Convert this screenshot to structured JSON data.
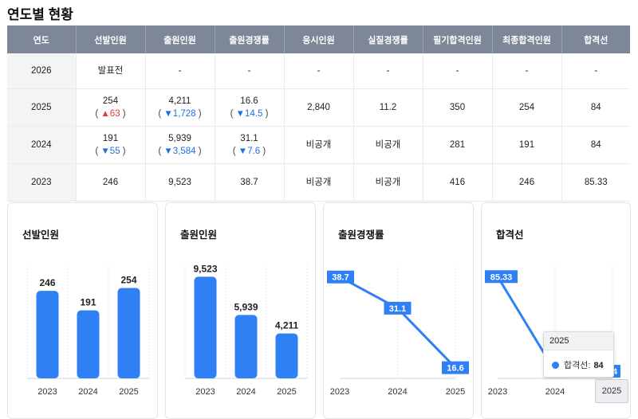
{
  "page_title": "연도별 현황",
  "table": {
    "headers": [
      "연도",
      "선발인원",
      "출원인원",
      "출원경쟁률",
      "응시인원",
      "실질경쟁률",
      "필기합격인원",
      "최종합격인원",
      "합격선"
    ],
    "rows": [
      {
        "year": "2026",
        "selected": "발표전",
        "selected_chg": null,
        "applicants": "-",
        "applicants_chg": null,
        "comp": "-",
        "comp_chg": null,
        "exam_takers": "-",
        "real_comp": "-",
        "written_pass": "-",
        "final_pass": "-",
        "cutoff": "-"
      },
      {
        "year": "2025",
        "selected": "254",
        "selected_chg": {
          "dir": "up",
          "symbol": "▲",
          "value": "63"
        },
        "applicants": "4,211",
        "applicants_chg": {
          "dir": "down",
          "symbol": "▼",
          "value": "1,728"
        },
        "comp": "16.6",
        "comp_chg": {
          "dir": "down",
          "symbol": "▼",
          "value": "14.5"
        },
        "exam_takers": "2,840",
        "real_comp": "11.2",
        "written_pass": "350",
        "final_pass": "254",
        "cutoff": "84"
      },
      {
        "year": "2024",
        "selected": "191",
        "selected_chg": {
          "dir": "down",
          "symbol": "▼",
          "value": "55"
        },
        "applicants": "5,939",
        "applicants_chg": {
          "dir": "down",
          "symbol": "▼",
          "value": "3,584"
        },
        "comp": "31.1",
        "comp_chg": {
          "dir": "down",
          "symbol": "▼",
          "value": "7.6"
        },
        "exam_takers": "비공개",
        "real_comp": "비공개",
        "written_pass": "281",
        "final_pass": "191",
        "cutoff": "84"
      },
      {
        "year": "2023",
        "selected": "246",
        "selected_chg": null,
        "applicants": "9,523",
        "applicants_chg": null,
        "comp": "38.7",
        "comp_chg": null,
        "exam_takers": "비공개",
        "real_comp": "비공개",
        "written_pass": "416",
        "final_pass": "246",
        "cutoff": "85.33"
      }
    ]
  },
  "colors": {
    "accent": "#2f80f5",
    "header_bg": "#7d8797",
    "up": "#e53935",
    "down": "#1e6fe0"
  },
  "chart_data": [
    {
      "type": "bar",
      "title": "선발인원",
      "categories": [
        "2023",
        "2024",
        "2025"
      ],
      "values": [
        246,
        191,
        254
      ],
      "value_labels": [
        "246",
        "191",
        "254"
      ],
      "ylim": [
        0,
        300
      ]
    },
    {
      "type": "bar",
      "title": "출원인원",
      "categories": [
        "2023",
        "2024",
        "2025"
      ],
      "values": [
        9523,
        5939,
        4211
      ],
      "value_labels": [
        "9,523",
        "5,939",
        "4,211"
      ],
      "ylim": [
        0,
        10000
      ]
    },
    {
      "type": "line",
      "title": "출원경쟁률",
      "categories": [
        "2023",
        "2024",
        "2025"
      ],
      "values": [
        38.7,
        31.1,
        16.6
      ],
      "value_labels": [
        "38.7",
        "31.1",
        "16.6"
      ],
      "ylim": [
        14,
        40
      ]
    },
    {
      "type": "line",
      "title": "합격선",
      "categories": [
        "2023",
        "2024",
        "2025"
      ],
      "values": [
        85.33,
        84,
        84
      ],
      "value_labels": [
        "85.33",
        "84",
        "84"
      ],
      "ylim": [
        83.9,
        85.4
      ]
    }
  ],
  "tooltip": {
    "title": "2025",
    "series": "합격선",
    "separator": ":",
    "value": "84"
  },
  "axis_pointer_label": "2025"
}
